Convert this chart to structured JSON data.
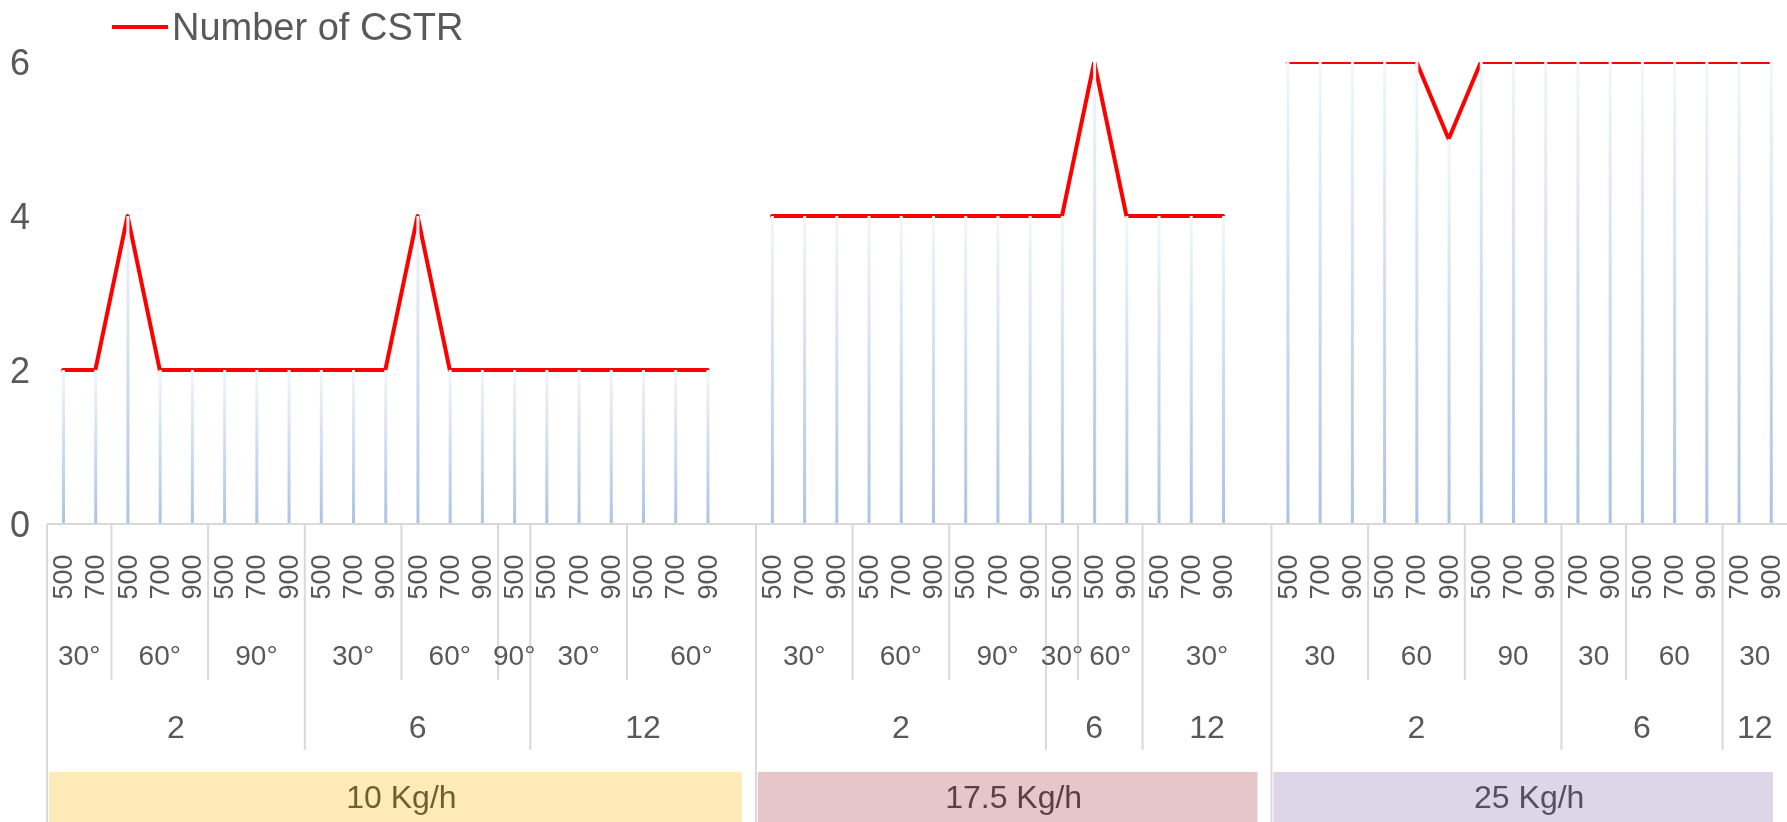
{
  "chart_data": {
    "type": "line",
    "categories": [
      [
        "500",
        "30°",
        "2",
        "10 Kg/h"
      ],
      [
        "700",
        null,
        null,
        null
      ],
      [
        "500",
        "60°",
        null,
        null
      ],
      [
        "700",
        null,
        null,
        null
      ],
      [
        "900",
        null,
        null,
        null
      ],
      [
        "500",
        "90°",
        null,
        null
      ],
      [
        "700",
        null,
        null,
        null
      ],
      [
        "900",
        null,
        null,
        null
      ],
      [
        "500",
        "30°",
        "6",
        null
      ],
      [
        "700",
        null,
        null,
        null
      ],
      [
        "900",
        null,
        null,
        null
      ],
      [
        "500",
        "60°",
        null,
        null
      ],
      [
        "700",
        null,
        null,
        null
      ],
      [
        "900",
        null,
        null,
        null
      ],
      [
        "500",
        "90°",
        null,
        null
      ],
      [
        "500",
        "30°",
        "12",
        null
      ],
      [
        "700",
        null,
        null,
        null
      ],
      [
        "900",
        null,
        null,
        null
      ],
      [
        "500",
        "60°",
        null,
        null
      ],
      [
        "700",
        null,
        null,
        null
      ],
      [
        "900",
        null,
        null,
        null
      ],
      [
        null,
        null,
        null,
        null
      ],
      [
        "500",
        "30°",
        "2",
        "17.5 Kg/h"
      ],
      [
        "700",
        null,
        null,
        null
      ],
      [
        "900",
        null,
        null,
        null
      ],
      [
        "500",
        "60°",
        null,
        null
      ],
      [
        "700",
        null,
        null,
        null
      ],
      [
        "900",
        null,
        null,
        null
      ],
      [
        "500",
        "90°",
        null,
        null
      ],
      [
        "700",
        null,
        null,
        null
      ],
      [
        "900",
        null,
        null,
        null
      ],
      [
        "500",
        "30°",
        "6",
        null
      ],
      [
        "500",
        "60°",
        null,
        null
      ],
      [
        "900",
        null,
        null,
        null
      ],
      [
        "500",
        "30°",
        "12",
        null
      ],
      [
        "700",
        null,
        null,
        null
      ],
      [
        "900",
        null,
        null,
        null
      ],
      [
        null,
        null,
        null,
        null
      ],
      [
        "500",
        "30",
        "2",
        "25 Kg/h"
      ],
      [
        "700",
        null,
        null,
        null
      ],
      [
        "900",
        null,
        null,
        null
      ],
      [
        "500",
        "60",
        null,
        null
      ],
      [
        "700",
        null,
        null,
        null
      ],
      [
        "900",
        null,
        null,
        null
      ],
      [
        "500",
        "90",
        null,
        null
      ],
      [
        "700",
        null,
        null,
        null
      ],
      [
        "900",
        null,
        null,
        null
      ],
      [
        "700",
        "30",
        "6",
        null
      ],
      [
        "900",
        null,
        null,
        null
      ],
      [
        "500",
        "60",
        null,
        null
      ],
      [
        "700",
        null,
        null,
        null
      ],
      [
        "900",
        null,
        null,
        null
      ],
      [
        "700",
        "30",
        "12",
        null
      ],
      [
        "900",
        null,
        null,
        null
      ]
    ],
    "series": [
      {
        "type": "bar",
        "color": "#adc3e3",
        "values": [
          2,
          2,
          4,
          2,
          2,
          2,
          2,
          2,
          2,
          2,
          2,
          4,
          2,
          2,
          2,
          2,
          2,
          2,
          2,
          2,
          2,
          null,
          4,
          4,
          4,
          4,
          4,
          4,
          4,
          4,
          4,
          4,
          6,
          4,
          4,
          4,
          4,
          null,
          6,
          6,
          6,
          6,
          6,
          5,
          6,
          6,
          6,
          6,
          6,
          6,
          6,
          6,
          6,
          6
        ]
      },
      {
        "name": "Number of CSTR",
        "color": "#ff0000",
        "values": [
          2,
          2,
          4,
          2,
          2,
          2,
          2,
          2,
          2,
          2,
          2,
          4,
          2,
          2,
          2,
          2,
          2,
          2,
          2,
          2,
          2,
          null,
          4,
          4,
          4,
          4,
          4,
          4,
          4,
          4,
          4,
          4,
          6,
          4,
          4,
          4,
          4,
          null,
          6,
          6,
          6,
          6,
          6,
          5,
          6,
          6,
          6,
          6,
          6,
          6,
          6,
          6,
          6,
          6
        ]
      }
    ],
    "ylim": [
      0,
      6
    ],
    "yticks": [
      0,
      2,
      4,
      6
    ],
    "legend": "top left"
  }
}
